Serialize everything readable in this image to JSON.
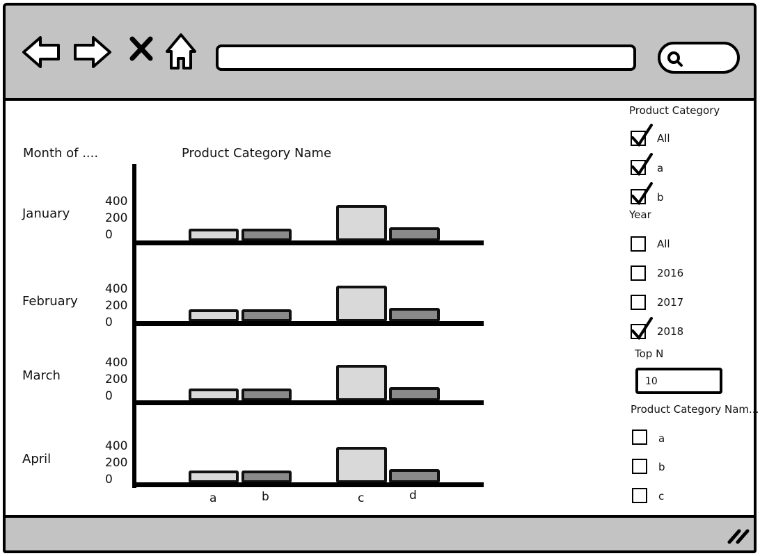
{
  "browser": {
    "icons": [
      "back-arrow-icon",
      "forward-arrow-icon",
      "close-icon",
      "home-icon",
      "search-icon"
    ],
    "address_value": ""
  },
  "chart_data": {
    "type": "bar",
    "title": "Product Category Name",
    "row_header": "Month of ....",
    "categories": [
      "a",
      "b",
      "c",
      "d"
    ],
    "y_ticks": [
      "400",
      "200",
      "0"
    ],
    "rows": [
      {
        "label": "January"
      },
      {
        "label": "February"
      },
      {
        "label": "March"
      },
      {
        "label": "April"
      }
    ]
  },
  "filters": {
    "product_category": {
      "title": "Product Category",
      "items": [
        {
          "label": "All",
          "checked": true
        },
        {
          "label": "a",
          "checked": true
        },
        {
          "label": "b",
          "checked": true
        }
      ]
    },
    "year": {
      "title": "Year",
      "items": [
        {
          "label": "All",
          "checked": false
        },
        {
          "label": "2016",
          "checked": false
        },
        {
          "label": "2017",
          "checked": false
        },
        {
          "label": "2018",
          "checked": true
        }
      ]
    },
    "top_n": {
      "title": "Top N",
      "value": "10"
    },
    "product_category_name": {
      "title": "Product Category Nam...",
      "items": [
        {
          "label": "a",
          "checked": false
        },
        {
          "label": "b",
          "checked": false
        },
        {
          "label": "c",
          "checked": false
        }
      ]
    }
  }
}
